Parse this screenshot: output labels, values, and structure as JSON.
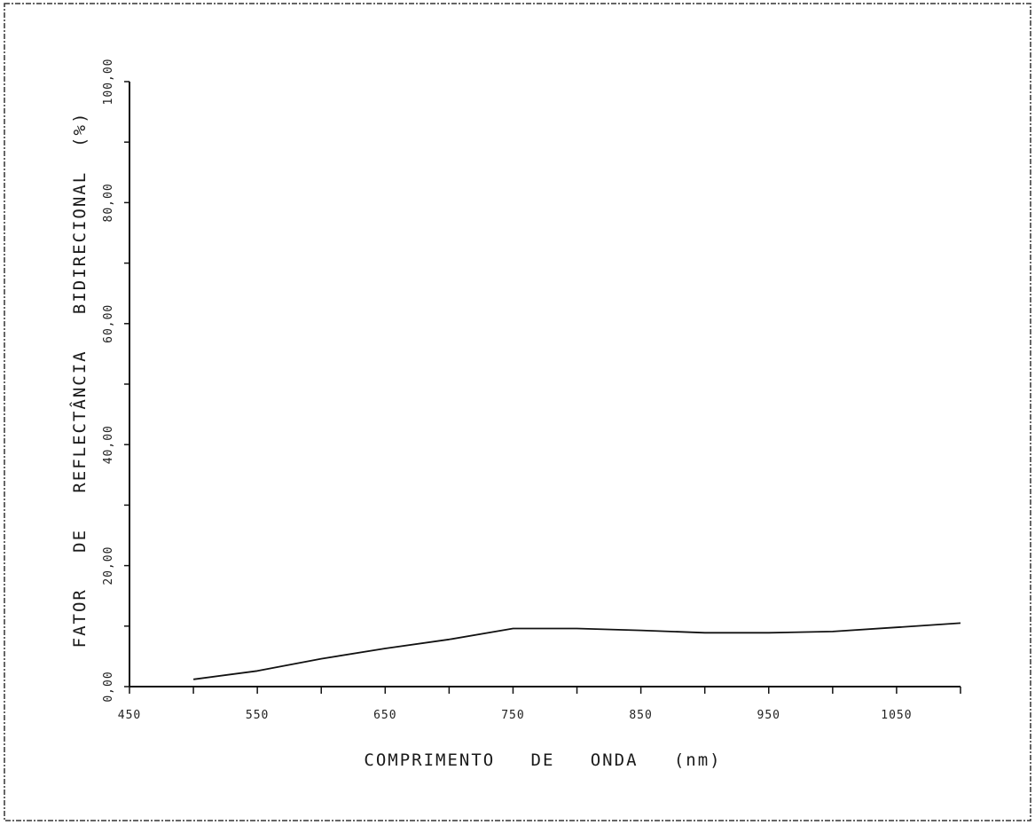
{
  "chart_data": {
    "type": "line",
    "title": "",
    "xlabel": "COMPRIMENTO   DE   ONDA   (nm)",
    "ylabel": "FATOR   DE   REFLECTÂNCIA   BIDIRECIONAL  (%)",
    "xlim": [
      450,
      1100
    ],
    "ylim": [
      0,
      100
    ],
    "x_ticks": [
      450,
      500,
      550,
      600,
      650,
      700,
      750,
      800,
      850,
      900,
      950,
      1000,
      1050,
      1100
    ],
    "x_tick_labels": [
      {
        "value": 450,
        "label": "450"
      },
      {
        "value": 550,
        "label": "550"
      },
      {
        "value": 650,
        "label": "650"
      },
      {
        "value": 750,
        "label": "750"
      },
      {
        "value": 850,
        "label": "850"
      },
      {
        "value": 950,
        "label": "950"
      },
      {
        "value": 1050,
        "label": "1050"
      }
    ],
    "y_ticks": [
      0,
      10,
      20,
      30,
      40,
      50,
      60,
      70,
      80,
      90,
      100
    ],
    "y_tick_labels": [
      {
        "value": 0,
        "label": "0,00"
      },
      {
        "value": 20,
        "label": "20,00"
      },
      {
        "value": 40,
        "label": "40,00"
      },
      {
        "value": 60,
        "label": "60,00"
      },
      {
        "value": 80,
        "label": "80,00"
      },
      {
        "value": 100,
        "label": "100,00"
      }
    ],
    "grid": false,
    "legend": "none",
    "series": [
      {
        "x": [
          500,
          550,
          600,
          650,
          700,
          750,
          800,
          850,
          900,
          950,
          1000,
          1050,
          1100
        ],
        "values": [
          1.2,
          2.6,
          4.6,
          6.3,
          7.8,
          9.6,
          9.6,
          9.3,
          8.9,
          8.9,
          9.1,
          9.8,
          10.5
        ]
      }
    ],
    "colors": {
      "line": "#111111",
      "axis": "#111111",
      "frame": "#333333"
    }
  }
}
